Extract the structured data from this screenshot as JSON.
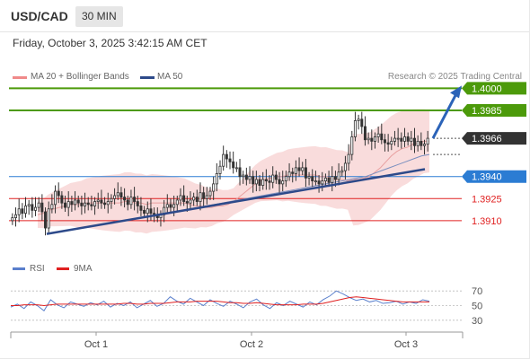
{
  "header": {
    "pair": "USD/CAD",
    "timeframe": "30 MIN",
    "datetime": "Friday, October 3, 2025 3:42:15 AM CET"
  },
  "legend": {
    "ma20": "MA 20 + Bollinger Bands",
    "ma50": "MA 50",
    "copyright": "Research © 2025 Trading Central"
  },
  "rsi_legend": {
    "rsi": "RSI",
    "ma9": "9MA"
  },
  "colors": {
    "green": "#4c9a0a",
    "blue": "#2b7cd3",
    "red": "#e02020",
    "dark": "#333333",
    "trend": "#2d4a8a",
    "bollinger": "#f8d6d6",
    "rsi": "#5a7fcc"
  },
  "chart_data": [
    {
      "type": "candlestick",
      "x_labels": [
        "Oct 1",
        "Oct 2",
        "Oct 3"
      ],
      "ylim": [
        1.388,
        1.401
      ],
      "current_price": "1.3966",
      "levels": [
        {
          "value": 1.4,
          "label": "1.4000",
          "kind": "resistance-target",
          "color": "#4c9a0a"
        },
        {
          "value": 1.3985,
          "label": "1.3985",
          "kind": "resistance",
          "color": "#4c9a0a"
        },
        {
          "value": 1.3966,
          "label": "1.3966",
          "kind": "last",
          "color": "#333333"
        },
        {
          "value": 1.394,
          "label": "1.3940",
          "kind": "pivot",
          "color": "#2b7cd3"
        },
        {
          "value": 1.3925,
          "label": "1.3925",
          "kind": "support",
          "color": "#e02020"
        },
        {
          "value": 1.391,
          "label": "1.3910",
          "kind": "support",
          "color": "#e02020"
        }
      ],
      "close": [
        1.3912,
        1.3914,
        1.3918,
        1.3915,
        1.392,
        1.3921,
        1.3917,
        1.3919,
        1.3922,
        1.3916,
        1.3905,
        1.3918,
        1.3921,
        1.393,
        1.3927,
        1.3922,
        1.3919,
        1.3923,
        1.3921,
        1.3924,
        1.3922,
        1.392,
        1.3922,
        1.3921,
        1.392,
        1.3923,
        1.3924,
        1.3922,
        1.3921,
        1.3923,
        1.3925,
        1.3927,
        1.3929,
        1.3926,
        1.3924,
        1.3921,
        1.3926,
        1.3923,
        1.392,
        1.3917,
        1.3915,
        1.3918,
        1.3915,
        1.3913,
        1.3912,
        1.3914,
        1.3919,
        1.3921,
        1.3919,
        1.3921,
        1.3924,
        1.3927,
        1.3923,
        1.3922,
        1.3924,
        1.3926,
        1.3923,
        1.3929,
        1.3925,
        1.3927,
        1.393,
        1.3935,
        1.3942,
        1.3947,
        1.3955,
        1.3952,
        1.395,
        1.3946,
        1.3946,
        1.394,
        1.3941,
        1.3938,
        1.394,
        1.3935,
        1.3938,
        1.3934,
        1.3938,
        1.3937,
        1.3936,
        1.3941,
        1.3938,
        1.3935,
        1.3937,
        1.394,
        1.3943,
        1.3942,
        1.3946,
        1.3944,
        1.3946,
        1.3939,
        1.394,
        1.3937,
        1.3937,
        1.3935,
        1.3937,
        1.3939,
        1.3936,
        1.394,
        1.3938,
        1.3943,
        1.3944,
        1.3949,
        1.3955,
        1.3967,
        1.3978,
        1.3979,
        1.3974,
        1.3965,
        1.3966,
        1.3964,
        1.3967,
        1.3969,
        1.3965,
        1.3963,
        1.3962,
        1.3964,
        1.3966,
        1.3966,
        1.3964,
        1.3967,
        1.3964,
        1.3966,
        1.3961,
        1.3964,
        1.3961,
        1.3962,
        1.3966
      ],
      "ma20": [
        1.3914,
        1.3915,
        1.3917,
        1.3918,
        1.3919,
        1.392,
        1.3921,
        1.3921,
        1.3921,
        1.3922,
        1.3922,
        1.3922,
        1.3922,
        1.3922,
        1.3922,
        1.3922,
        1.3923,
        1.3923,
        1.3922,
        1.3922,
        1.3921,
        1.3922,
        1.3922,
        1.3922,
        1.3922,
        1.3922,
        1.3922,
        1.3922,
        1.3921,
        1.392,
        1.392,
        1.3919,
        1.3919,
        1.392,
        1.392,
        1.3921,
        1.3923,
        1.3926,
        1.3929,
        1.3932,
        1.3935,
        1.3937,
        1.3938,
        1.3939,
        1.394,
        1.394,
        1.3941,
        1.3941,
        1.3941,
        1.3941,
        1.3941,
        1.3941,
        1.394,
        1.394,
        1.3939,
        1.3938,
        1.3938,
        1.3937,
        1.3938,
        1.3938,
        1.3939,
        1.394,
        1.3943,
        1.3946,
        1.395,
        1.3954,
        1.3957,
        1.3959,
        1.396,
        1.3962,
        1.3963,
        1.3964,
        1.3964
      ],
      "ma50": [
        1.3918,
        1.3919,
        1.392,
        1.3921,
        1.3922,
        1.3923,
        1.3924,
        1.3925,
        1.3926,
        1.3927,
        1.3928,
        1.3929,
        1.393,
        1.3931,
        1.3932,
        1.3933,
        1.3934,
        1.3935,
        1.3936,
        1.3937,
        1.3938,
        1.3939,
        1.394,
        1.3942,
        1.3944,
        1.3946,
        1.3948,
        1.395,
        1.3952,
        1.3954,
        1.3955
      ],
      "trendline": {
        "from": 1.3901,
        "to": 1.3945
      },
      "projection": {
        "from": 1.3966,
        "to": 1.4
      }
    },
    {
      "type": "line",
      "title": "RSI",
      "ylim": [
        20,
        80
      ],
      "y_ticks": [
        70,
        50,
        30
      ],
      "series": [
        {
          "name": "RSI",
          "values": [
            48,
            52,
            46,
            55,
            50,
            43,
            58,
            51,
            47,
            55,
            52,
            49,
            54,
            51,
            56,
            48,
            53,
            50,
            55,
            47,
            52,
            57,
            49,
            53,
            62,
            56,
            52,
            60,
            55,
            50,
            58,
            53,
            49,
            56,
            52,
            47,
            55,
            59,
            51,
            46,
            54,
            50,
            56,
            52,
            48,
            55,
            51,
            58,
            63,
            70,
            66,
            61,
            57,
            59,
            55,
            57,
            53,
            54,
            56,
            52,
            55,
            53,
            58,
            56
          ]
        },
        {
          "name": "9MA",
          "values": [
            50,
            50,
            51,
            51,
            51,
            50,
            51,
            52,
            52,
            52,
            52,
            52,
            52,
            52,
            52,
            52,
            52,
            53,
            53,
            52,
            52,
            53,
            53,
            53,
            54,
            55,
            55,
            55,
            56,
            56,
            56,
            56,
            55,
            54,
            54,
            53,
            53,
            54,
            53,
            52,
            51,
            51,
            51,
            51,
            52,
            52,
            52,
            53,
            55,
            57,
            59,
            61,
            62,
            61,
            60,
            59,
            58,
            57,
            56,
            55,
            55,
            55,
            55,
            55
          ]
        }
      ]
    }
  ]
}
